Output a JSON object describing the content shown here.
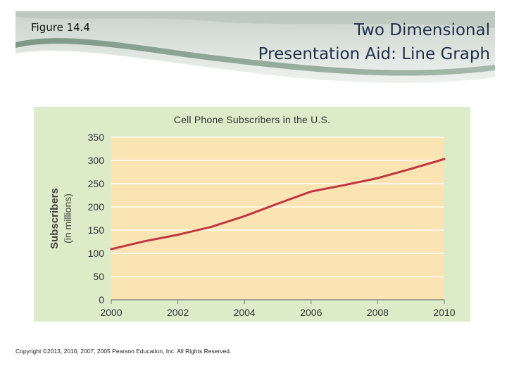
{
  "slide": {
    "figure_label": "Figure 14.4",
    "title_line1": "Two Dimensional",
    "title_line2": "Presentation Aid: Line Graph",
    "copyright": "Copyright ©2013, 2010, 2007, 2005 Pearson Education, Inc. All Rights Reserved."
  },
  "colors": {
    "panel_bg": "#dcebc8",
    "plot_bg": "#fae4b4",
    "line": "#c0363f",
    "title": "#1e2f4a",
    "band": "#7f9a86"
  },
  "chart_data": {
    "type": "line",
    "title": "Cell Phone Subscribers in the U.S.",
    "xlabel": "",
    "ylabel": "Subscribers",
    "ylabel_sub": "(in millions)",
    "xlim": [
      2000,
      2010
    ],
    "ylim": [
      0,
      350
    ],
    "xticks": [
      "2000",
      "2002",
      "2004",
      "2006",
      "2008",
      "2010"
    ],
    "yticks": [
      "0",
      "50",
      "100",
      "150",
      "200",
      "250",
      "300",
      "350"
    ],
    "grid": true,
    "series": [
      {
        "name": "Subscribers",
        "x": [
          2000,
          2001,
          2002,
          2003,
          2004,
          2005,
          2006,
          2007,
          2008,
          2009,
          2010
        ],
        "values": [
          109,
          126,
          140,
          157,
          180,
          207,
          233,
          247,
          262,
          282,
          303
        ]
      }
    ]
  }
}
